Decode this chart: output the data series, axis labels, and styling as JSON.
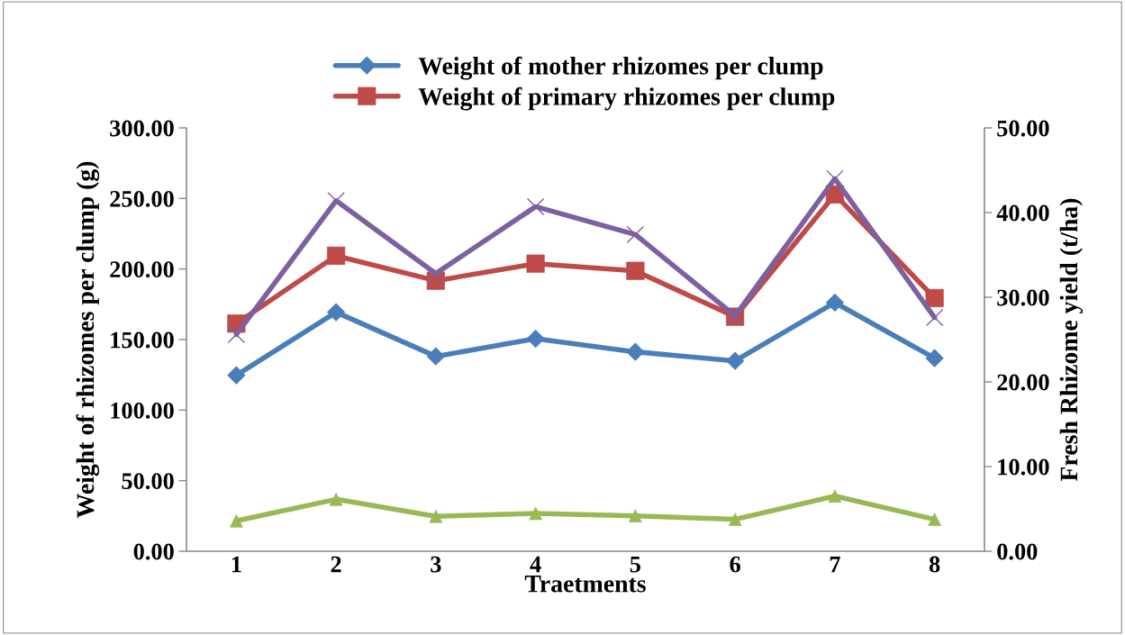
{
  "chart_data": {
    "type": "line",
    "xlabel": "Traetments",
    "ylabel": "Weight of rhizomes per clump (g)",
    "y2label": "Fresh Rhizome yield (t/ha)",
    "categories": [
      "1",
      "2",
      "3",
      "4",
      "5",
      "6",
      "7",
      "8"
    ],
    "series": [
      {
        "name": "Weight of mother rhizomes per clump",
        "color": "#4a7ebb",
        "marker": "diamond",
        "values": [
          124.7,
          169.4,
          138.1,
          150.6,
          141.3,
          134.9,
          176.2,
          136.8
        ]
      },
      {
        "name": "Weight of primary rhizomes per clump",
        "color": "#be4b48",
        "marker": "square",
        "values": [
          161.3,
          209.4,
          191.7,
          203.8,
          198.7,
          166.2,
          252.8,
          179.4
        ]
      },
      {
        "color": "#98b954",
        "marker": "triangle",
        "values": [
          21.5,
          36.8,
          24.7,
          26.8,
          25.1,
          22.6,
          39.1,
          22.6
        ]
      },
      {
        "color": "#7d60a0",
        "marker": "cross",
        "axis": "y2",
        "values": [
          25.6,
          41.4,
          32.8,
          40.7,
          37.4,
          27.8,
          44.0,
          27.6
        ]
      }
    ],
    "ylim": [
      0,
      300
    ],
    "yticks": [
      {
        "value": 0,
        "label": "0.00"
      },
      {
        "value": 50,
        "label": "50.00"
      },
      {
        "value": 100,
        "label": "100.00"
      },
      {
        "value": 150,
        "label": "150.00"
      },
      {
        "value": 200,
        "label": "200.00"
      },
      {
        "value": 250,
        "label": "250.00"
      },
      {
        "value": 300,
        "label": "300.00"
      }
    ],
    "y2lim": [
      0,
      50
    ],
    "y2ticks": [
      {
        "value": 0,
        "label": "0.00"
      },
      {
        "value": 10,
        "label": "10.00"
      },
      {
        "value": 20,
        "label": "20.00"
      },
      {
        "value": 30,
        "label": "30.00"
      },
      {
        "value": 40,
        "label": "40.00"
      },
      {
        "value": 50,
        "label": "50.00"
      }
    ],
    "grid": false,
    "legend": "top",
    "line_style": "solid"
  }
}
